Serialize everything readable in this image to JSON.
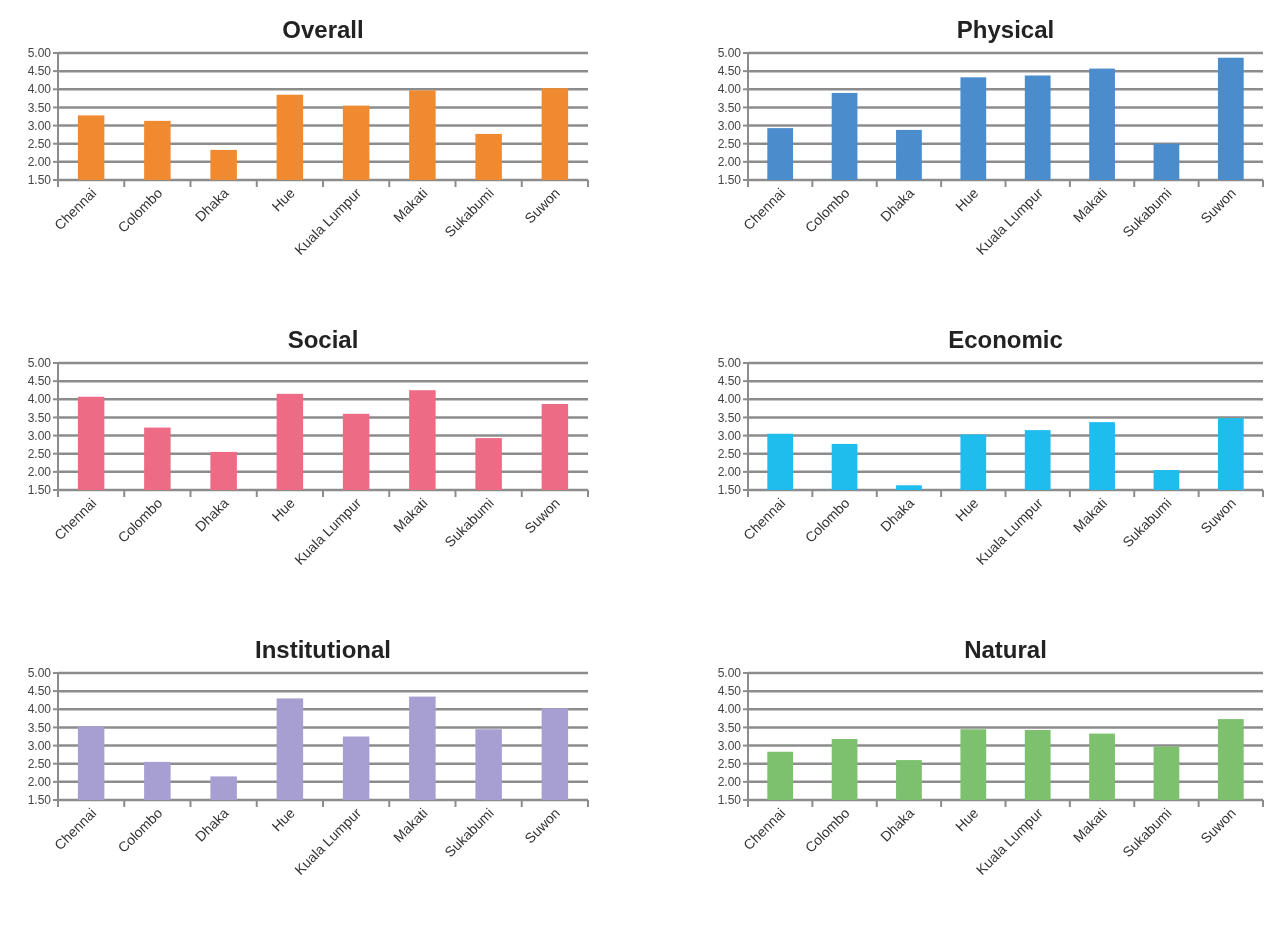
{
  "chart_data": [
    {
      "type": "bar",
      "title": "Overall",
      "categories": [
        "Chennai",
        "Colombo",
        "Dhaka",
        "Hue",
        "Kuala Lumpur",
        "Makati",
        "Sukabumi",
        "Suwon"
      ],
      "values": [
        3.28,
        3.13,
        2.33,
        3.85,
        3.55,
        3.97,
        2.77,
        4.03
      ],
      "color": "#f08a30",
      "ylim": [
        1.5,
        5
      ],
      "yticks": [
        {
          "value": 1.5,
          "label": "1.50"
        },
        {
          "value": 2,
          "label": "2.00"
        },
        {
          "value": 2.5,
          "label": "2.50"
        },
        {
          "value": 3,
          "label": "3.00"
        },
        {
          "value": 3.5,
          "label": "3.50"
        },
        {
          "value": 4,
          "label": "4.00"
        },
        {
          "value": 4.5,
          "label": "4.50"
        },
        {
          "value": 5,
          "label": "5.00"
        }
      ],
      "grid": "y"
    },
    {
      "type": "bar",
      "title": "Physical",
      "categories": [
        "Chennai",
        "Colombo",
        "Dhaka",
        "Hue",
        "Kuala Lumpur",
        "Makati",
        "Sukabumi",
        "Suwon"
      ],
      "values": [
        2.93,
        3.9,
        2.88,
        4.33,
        4.38,
        4.57,
        2.5,
        4.87
      ],
      "color": "#4a8ccc",
      "ylim": [
        1.5,
        5
      ],
      "yticks": [
        {
          "value": 1.5,
          "label": "1.50"
        },
        {
          "value": 2,
          "label": "2.00"
        },
        {
          "value": 2.5,
          "label": "2.50"
        },
        {
          "value": 3,
          "label": "3.00"
        },
        {
          "value": 3.5,
          "label": "3.50"
        },
        {
          "value": 4,
          "label": "4.00"
        },
        {
          "value": 4.5,
          "label": "4.50"
        },
        {
          "value": 5,
          "label": "5.00"
        }
      ],
      "grid": "y"
    },
    {
      "type": "bar",
      "title": "Social",
      "categories": [
        "Chennai",
        "Colombo",
        "Dhaka",
        "Hue",
        "Kuala Lumpur",
        "Makati",
        "Sukabumi",
        "Suwon"
      ],
      "values": [
        4.07,
        3.22,
        2.55,
        4.15,
        3.6,
        4.25,
        2.93,
        3.87
      ],
      "color": "#ee6b85",
      "ylim": [
        1.5,
        5
      ],
      "yticks": [
        {
          "value": 1.5,
          "label": "1.50"
        },
        {
          "value": 2,
          "label": "2.00"
        },
        {
          "value": 2.5,
          "label": "2.50"
        },
        {
          "value": 3,
          "label": "3.00"
        },
        {
          "value": 3.5,
          "label": "3.50"
        },
        {
          "value": 4,
          "label": "4.00"
        },
        {
          "value": 4.5,
          "label": "4.50"
        },
        {
          "value": 5,
          "label": "5.00"
        }
      ],
      "grid": "y"
    },
    {
      "type": "bar",
      "title": "Economic",
      "categories": [
        "Chennai",
        "Colombo",
        "Dhaka",
        "Hue",
        "Kuala Lumpur",
        "Makati",
        "Sukabumi",
        "Suwon"
      ],
      "values": [
        3.05,
        2.77,
        1.63,
        3.03,
        3.15,
        3.37,
        2.05,
        3.48
      ],
      "color": "#1ebdee",
      "ylim": [
        1.5,
        5
      ],
      "yticks": [
        {
          "value": 1.5,
          "label": "1.50"
        },
        {
          "value": 2,
          "label": "2.00"
        },
        {
          "value": 2.5,
          "label": "2.50"
        },
        {
          "value": 3,
          "label": "3.00"
        },
        {
          "value": 3.5,
          "label": "3.50"
        },
        {
          "value": 4,
          "label": "4.00"
        },
        {
          "value": 4.5,
          "label": "4.50"
        },
        {
          "value": 5,
          "label": "5.00"
        }
      ],
      "grid": "y"
    },
    {
      "type": "bar",
      "title": "Institutional",
      "categories": [
        "Chennai",
        "Colombo",
        "Dhaka",
        "Hue",
        "Kuala Lumpur",
        "Makati",
        "Sukabumi",
        "Suwon"
      ],
      "values": [
        3.53,
        2.55,
        2.15,
        4.3,
        3.25,
        4.35,
        3.45,
        4.03
      ],
      "color": "#a79fd2",
      "ylim": [
        1.5,
        5
      ],
      "yticks": [
        {
          "value": 1.5,
          "label": "1.50"
        },
        {
          "value": 2,
          "label": "2.00"
        },
        {
          "value": 2.5,
          "label": "2.50"
        },
        {
          "value": 3,
          "label": "3.00"
        },
        {
          "value": 3.5,
          "label": "3.50"
        },
        {
          "value": 4,
          "label": "4.00"
        },
        {
          "value": 4.5,
          "label": "4.50"
        },
        {
          "value": 5,
          "label": "5.00"
        }
      ],
      "grid": "y"
    },
    {
      "type": "bar",
      "title": "Natural",
      "categories": [
        "Chennai",
        "Colombo",
        "Dhaka",
        "Hue",
        "Kuala Lumpur",
        "Makati",
        "Sukabumi",
        "Suwon"
      ],
      "values": [
        2.83,
        3.18,
        2.6,
        3.45,
        3.43,
        3.33,
        2.97,
        3.73
      ],
      "color": "#7dc06e",
      "ylim": [
        1.5,
        5
      ],
      "yticks": [
        {
          "value": 1.5,
          "label": "1.50"
        },
        {
          "value": 2,
          "label": "2.00"
        },
        {
          "value": 2.5,
          "label": "2.50"
        },
        {
          "value": 3,
          "label": "3.00"
        },
        {
          "value": 3.5,
          "label": "3.50"
        },
        {
          "value": 4,
          "label": "4.00"
        },
        {
          "value": 4.5,
          "label": "4.50"
        },
        {
          "value": 5,
          "label": "5.00"
        }
      ],
      "grid": "y"
    }
  ]
}
